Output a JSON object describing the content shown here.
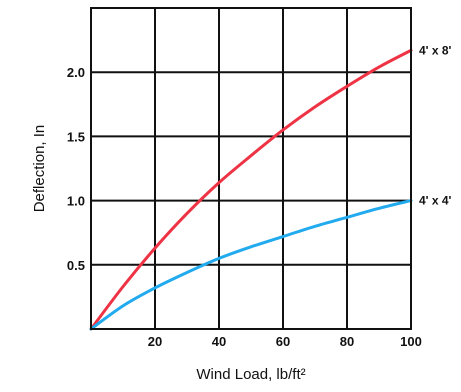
{
  "chart_data": {
    "type": "line",
    "title": "",
    "xlabel": "Wind Load, lb/ft²",
    "ylabel": "Deflection, In",
    "xlim": [
      0,
      100
    ],
    "ylim": [
      0,
      2.5
    ],
    "x_ticks": [
      "20",
      "40",
      "60",
      "80",
      "100"
    ],
    "y_ticks": [
      "0.5",
      "1.0",
      "1.5",
      "2.0"
    ],
    "grid": true,
    "series": [
      {
        "name": "4' x 8'",
        "color": "#ee3344",
        "x": [
          0,
          10,
          20,
          30,
          40,
          50,
          60,
          70,
          80,
          90,
          100
        ],
        "y": [
          0,
          0.33,
          0.63,
          0.9,
          1.14,
          1.35,
          1.55,
          1.73,
          1.89,
          2.04,
          2.17
        ]
      },
      {
        "name": "4' x 4'",
        "color": "#22aaee",
        "x": [
          0,
          10,
          20,
          30,
          40,
          50,
          60,
          70,
          80,
          90,
          100
        ],
        "y": [
          0,
          0.18,
          0.32,
          0.44,
          0.55,
          0.64,
          0.72,
          0.8,
          0.87,
          0.94,
          1.0
        ]
      }
    ]
  }
}
